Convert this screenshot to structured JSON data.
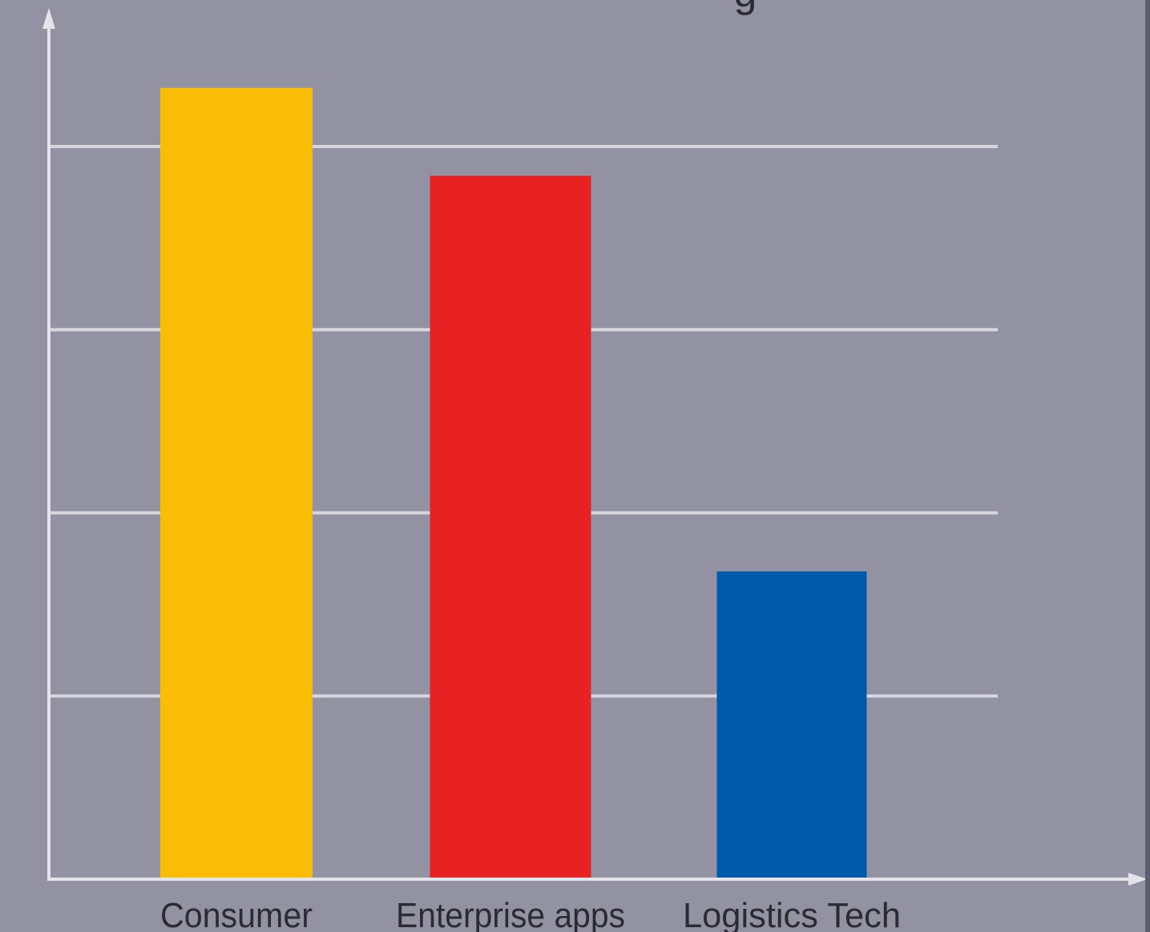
{
  "chart_data": {
    "type": "bar",
    "categories": [
      "Consumer",
      "Enterprise apps",
      "Logistics Tech"
    ],
    "values": [
      108,
      96,
      42
    ],
    "ylim": [
      0,
      120
    ],
    "grid": true,
    "legend": "none",
    "title_fragment": "g",
    "colors": {
      "background": "#9292a3",
      "bars": [
        "#f9bd06",
        "#e82122",
        "#005aab"
      ],
      "grid": "#d6d6dc",
      "axis": "#e4e4ea",
      "text": "#2b2b33"
    }
  }
}
